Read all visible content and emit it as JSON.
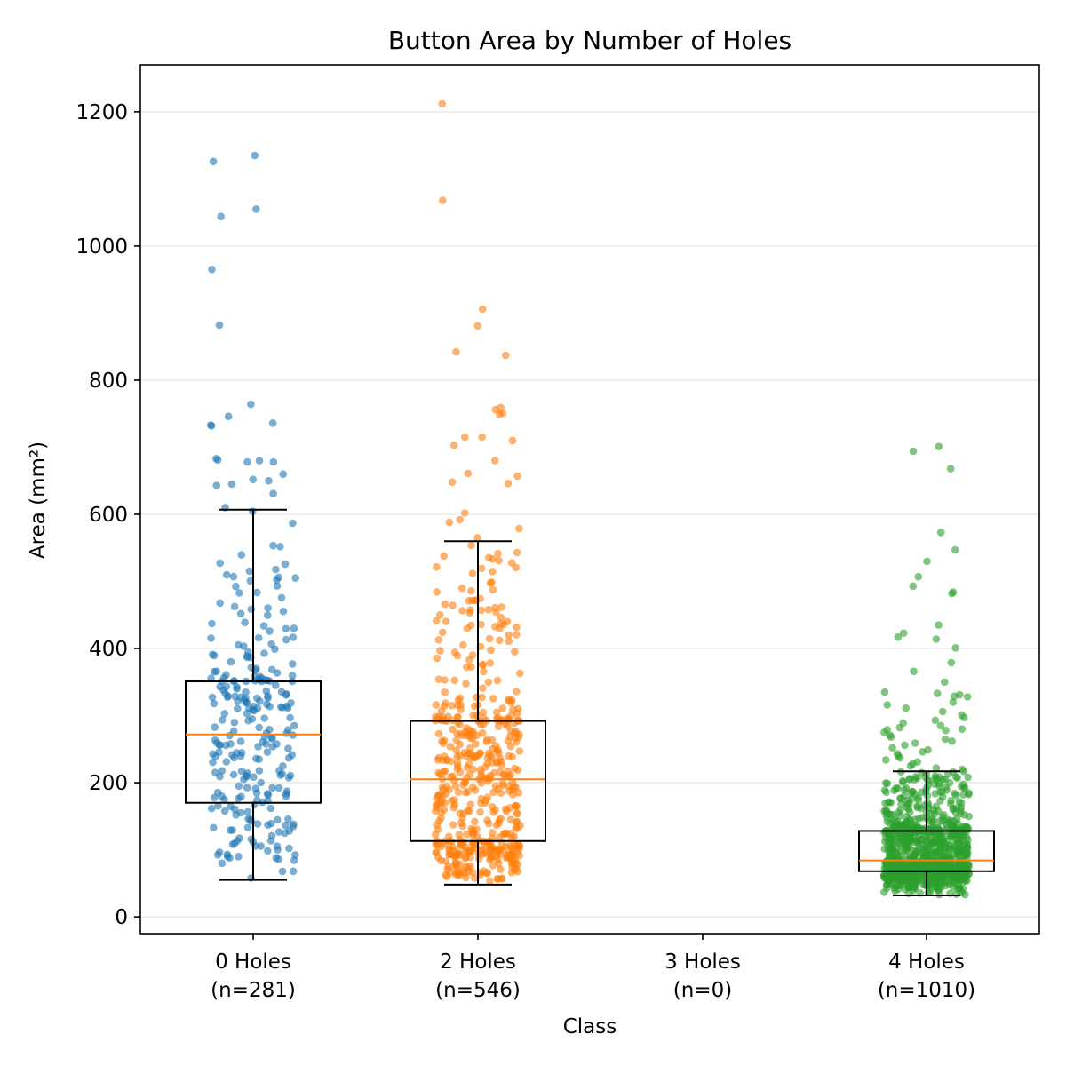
{
  "chart_data": {
    "type": "box",
    "title": "Button Area by Number of Holes",
    "xlabel": "Class",
    "ylabel": "Area (mm²)",
    "ylim": [
      -25,
      1270
    ],
    "yticks": [
      0,
      200,
      400,
      600,
      800,
      1000,
      1200
    ],
    "grid": "horizontal",
    "colors": {
      "c0": "#1f77b4",
      "c2": "#ff7f0e",
      "c4": "#2ca02c",
      "median": "#ff7f0e",
      "box": "#000000",
      "grid": "#e6e6e6"
    },
    "categories": [
      {
        "name": "0 Holes",
        "n_label": "(n=281)",
        "n": 281,
        "color_key": "c0",
        "box": {
          "whisker_low": 55,
          "q1": 170,
          "median": 272,
          "q3": 351,
          "whisker_high": 607
        },
        "outliers": [
          1135,
          1126,
          1055,
          1044,
          965,
          882,
          764,
          746,
          736,
          733,
          732,
          683,
          681,
          680,
          678,
          678,
          660,
          652,
          650,
          645,
          643,
          631,
          610
        ]
      },
      {
        "name": "2 Holes",
        "n_label": "(n=546)",
        "n": 546,
        "color_key": "c2",
        "box": {
          "whisker_low": 48,
          "q1": 113,
          "median": 205,
          "q3": 292,
          "whisker_high": 560
        },
        "outliers": [
          1212,
          1068,
          906,
          881,
          842,
          837,
          759,
          756,
          751,
          749,
          715,
          715,
          710,
          703,
          680,
          661,
          657,
          648,
          646,
          602,
          592,
          588,
          579,
          565
        ]
      },
      {
        "name": "3 Holes",
        "n_label": "(n=0)",
        "n": 0,
        "color_key": "c0",
        "box": null,
        "outliers": []
      },
      {
        "name": "4 Holes",
        "n_label": "(n=1010)",
        "n": 1010,
        "color_key": "c4",
        "box": {
          "whisker_low": 32,
          "q1": 68,
          "median": 84,
          "q3": 128,
          "whisker_high": 217
        },
        "outliers": [
          701,
          694,
          668,
          573,
          547,
          530,
          507,
          493,
          484,
          482,
          435,
          423,
          417,
          414,
          401,
          379,
          366,
          350,
          335,
          333,
          331,
          329,
          328,
          320,
          316,
          311,
          306,
          301,
          297,
          293,
          289,
          285,
          282,
          280,
          279,
          278,
          275,
          271,
          268,
          265,
          262,
          259,
          256,
          252,
          249,
          246,
          243,
          240,
          237,
          234,
          231,
          228,
          225,
          222,
          220
        ]
      }
    ]
  }
}
